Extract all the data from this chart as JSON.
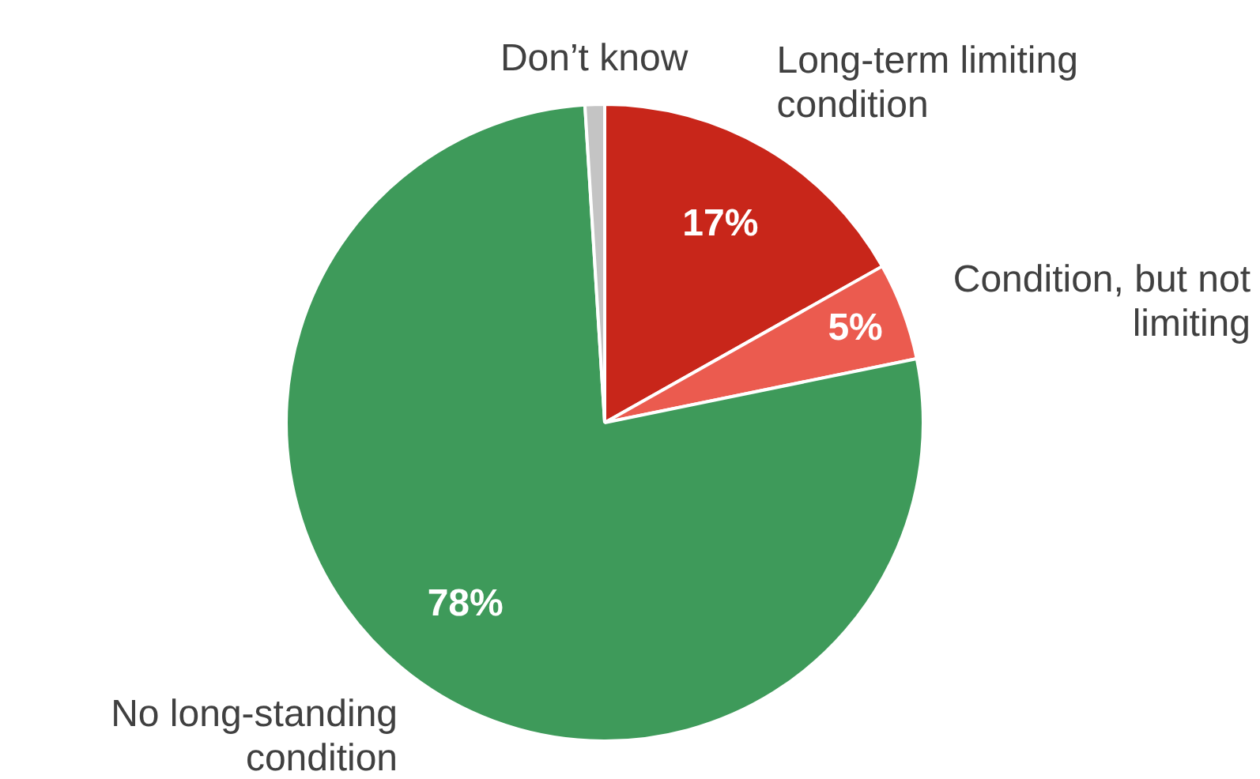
{
  "chart_data": {
    "type": "pie",
    "categories": [
      "Long-term limiting condition",
      "Condition, but not limiting",
      "No long-standing condition",
      "Don’t know"
    ],
    "values": [
      17,
      5,
      78,
      1
    ],
    "colors": [
      "#c8261a",
      "#eb5b4f",
      "#3e9a5a",
      "#c4c4c4"
    ],
    "value_labels": [
      "17%",
      "5%",
      "78%",
      null
    ],
    "legend": false
  }
}
